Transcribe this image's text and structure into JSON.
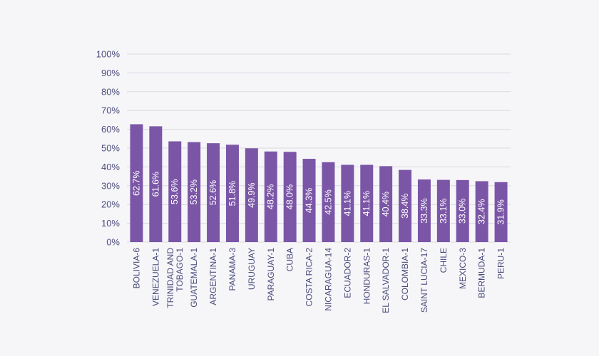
{
  "chart_data": {
    "type": "bar",
    "title": "",
    "xlabel": "",
    "ylabel": "",
    "ylim": [
      0,
      100
    ],
    "yticks": [
      "0%",
      "10%",
      "20%",
      "30%",
      "40%",
      "50%",
      "60%",
      "70%",
      "80%",
      "90%",
      "100%"
    ],
    "grid": true,
    "categories": [
      "BOLIVIA-6",
      "VENEZUELA-1",
      "TRINIDAD AND TOBAGO-1",
      "GUATEMALA-1",
      "ARGENTINA-1",
      "PANAMA-3",
      "URUGUAY",
      "PARAGUAY-1",
      "CUBA",
      "COSTA RICA-2",
      "NICARAGUA-14",
      "ECUADOR-2",
      "HONDURAS-1",
      "EL SALVADOR-1",
      "COLOMBIA-1",
      "SAINT LUCIA-17",
      "CHILE",
      "MEXICO-3",
      "BERMUDA-1",
      "PERU-1"
    ],
    "category_lines": [
      [
        "BOLIVIA-6"
      ],
      [
        "VENEZUELA-1"
      ],
      [
        "TRINIDAD AND",
        "TOBAGO-1"
      ],
      [
        "GUATEMALA-1"
      ],
      [
        "ARGENTINA-1"
      ],
      [
        "PANAMA-3"
      ],
      [
        "URUGUAY"
      ],
      [
        "PARAGUAY-1"
      ],
      [
        "CUBA"
      ],
      [
        "COSTA RICA-2"
      ],
      [
        "NICARAGUA-14"
      ],
      [
        "ECUADOR-2"
      ],
      [
        "HONDURAS-1"
      ],
      [
        "EL SALVADOR-1"
      ],
      [
        "COLOMBIA-1"
      ],
      [
        "SAINT LUCIA-17"
      ],
      [
        "CHILE"
      ],
      [
        "MEXICO-3"
      ],
      [
        "BERMUDA-1"
      ],
      [
        "PERU-1"
      ]
    ],
    "values": [
      62.7,
      61.6,
      53.6,
      53.2,
      52.6,
      51.8,
      49.9,
      48.2,
      48.0,
      44.3,
      42.5,
      41.1,
      41.1,
      40.4,
      38.4,
      33.3,
      33.1,
      33.0,
      32.4,
      31.9
    ],
    "data_labels": [
      "62.7%",
      "61.6%",
      "53.6%",
      "53.2%",
      "52.6%",
      "51.8%",
      "49.9%",
      "48.2%",
      "48.0%",
      "44.3%",
      "42.5%",
      "41.1%",
      "41.1%",
      "40.4%",
      "38.4%",
      "33.3%",
      "33.1%",
      "33.0%",
      "32.4%",
      "31.9%"
    ],
    "colors": {
      "bar": "#7b56a7",
      "grid": "#d9d9e0",
      "tick_text": "#4b4b7c",
      "data_label": "#ffffff",
      "background": "#f6f6f9"
    }
  }
}
